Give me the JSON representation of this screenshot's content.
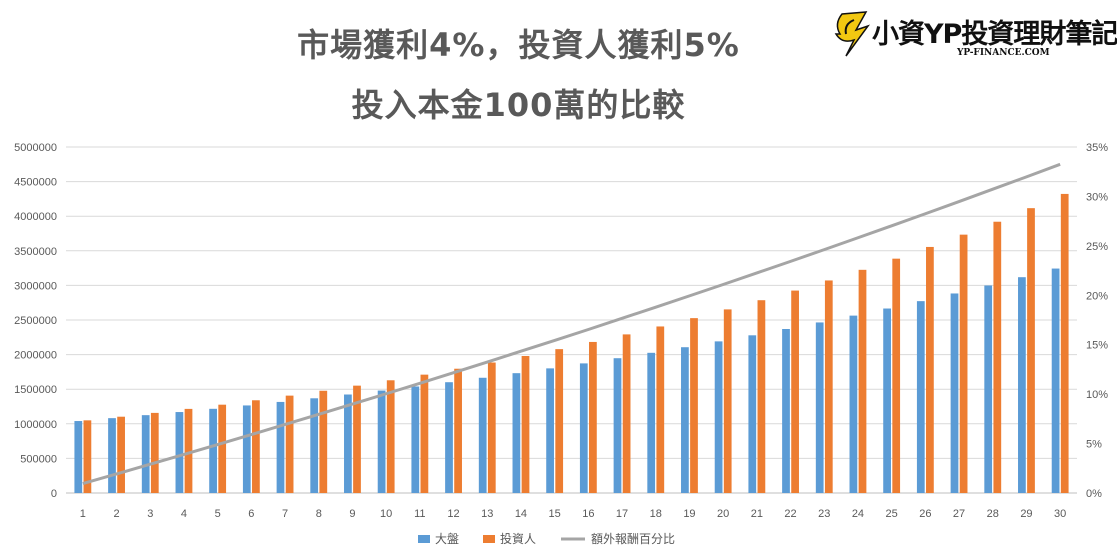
{
  "title_line1": "市場獲利4%，投資人獲利5%",
  "title_line2": "投入本金100萬的比較",
  "logo": {
    "text": "小資YP投資理財筆記",
    "sub": "YP-FINANCE.COM"
  },
  "chart_data": {
    "type": "bar",
    "title": "市場獲利4%，投資人獲利5% 投入本金100萬的比較",
    "categories": [
      1,
      2,
      3,
      4,
      5,
      6,
      7,
      8,
      9,
      10,
      11,
      12,
      13,
      14,
      15,
      16,
      17,
      18,
      19,
      20,
      21,
      22,
      23,
      24,
      25,
      26,
      27,
      28,
      29,
      30
    ],
    "series": [
      {
        "name": "大盤",
        "color": "#5B9BD5",
        "axis": "left",
        "values": [
          1040000,
          1081600,
          1124864,
          1169859,
          1216653,
          1265319,
          1315932,
          1368569,
          1423312,
          1480244,
          1539454,
          1601032,
          1665074,
          1731676,
          1800944,
          1872981,
          1947900,
          2025817,
          2106849,
          2191123,
          2278768,
          2369919,
          2464716,
          2563304,
          2665836,
          2772470,
          2883369,
          2998703,
          3118651,
          3243398
        ]
      },
      {
        "name": "投資人",
        "color": "#ED7D31",
        "axis": "left",
        "values": [
          1050000,
          1102500,
          1157625,
          1215506,
          1276282,
          1340096,
          1407100,
          1477455,
          1551328,
          1628895,
          1710339,
          1795856,
          1885649,
          1979932,
          2078928,
          2182875,
          2292018,
          2406619,
          2526950,
          2653298,
          2785963,
          2925261,
          3071524,
          3225100,
          3386355,
          3555673,
          3733456,
          3920129,
          4116136,
          4321942
        ]
      },
      {
        "name": "額外報酬百分比",
        "color": "#A5A5A5",
        "type": "line",
        "axis": "right",
        "values": [
          0.96,
          1.93,
          2.91,
          3.9,
          4.9,
          5.91,
          6.93,
          7.96,
          9.0,
          10.04,
          11.1,
          12.17,
          13.25,
          14.34,
          15.43,
          16.54,
          17.67,
          18.8,
          19.94,
          21.09,
          22.26,
          23.43,
          24.62,
          25.82,
          27.03,
          28.25,
          29.48,
          30.73,
          31.98,
          33.25
        ]
      }
    ],
    "yAxisLeft": {
      "min": 0,
      "max": 5000000,
      "step": 500000,
      "ticks": [
        "0",
        "500000",
        "1000000",
        "1500000",
        "2000000",
        "2500000",
        "3000000",
        "3500000",
        "4000000",
        "4500000",
        "5000000"
      ]
    },
    "yAxisRight": {
      "min": 0,
      "max": 35,
      "step": 5,
      "ticks": [
        "0%",
        "5%",
        "10%",
        "15%",
        "20%",
        "25%",
        "30%",
        "35%"
      ]
    },
    "grid": true,
    "legend": "bottom"
  }
}
